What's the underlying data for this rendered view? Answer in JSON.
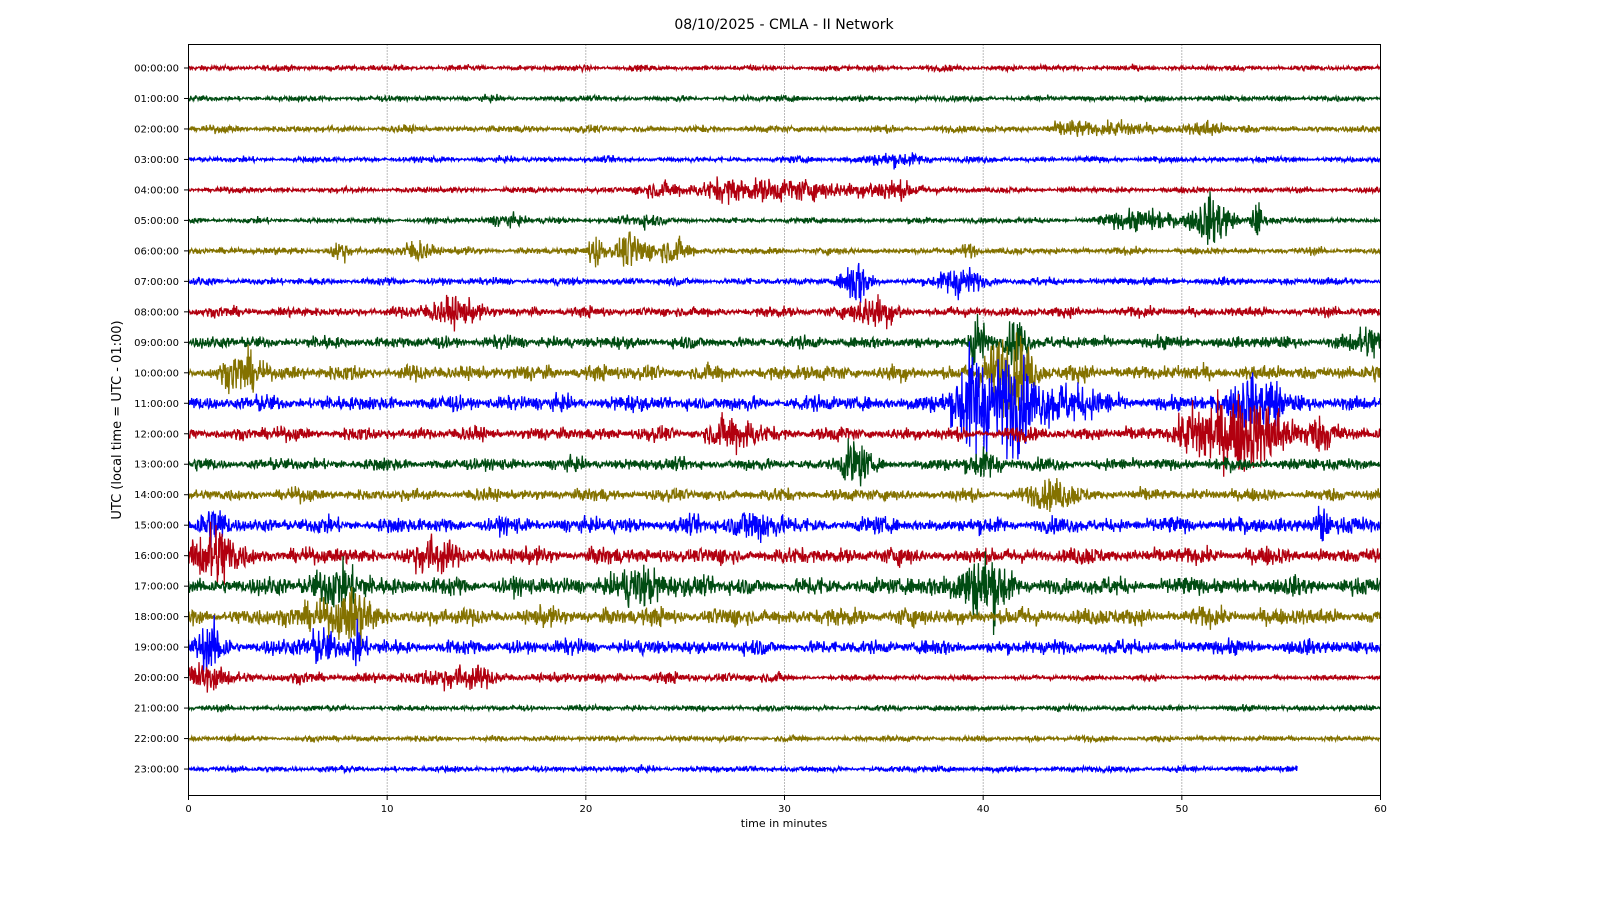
{
  "chart_data": {
    "type": "line",
    "subtype": "helicorder",
    "title": "08/10/2025 - CMLA - II Network",
    "xlabel": "time in minutes",
    "ylabel": "UTC (local time = UTC - 01:00)",
    "xlim": [
      0,
      60
    ],
    "xticks": [
      0,
      10,
      20,
      30,
      40,
      50,
      60
    ],
    "grid": "vertical dotted at x ticks",
    "colors": [
      "#B2000F",
      "#004C12",
      "#847200",
      "#0000FF"
    ],
    "rows": [
      {
        "label": "00:00:00",
        "noise": 0.1,
        "end": 60,
        "events": []
      },
      {
        "label": "01:00:00",
        "noise": 0.1,
        "end": 60,
        "events": []
      },
      {
        "label": "02:00:00",
        "noise": 0.12,
        "end": 60,
        "events": [
          [
            44.5,
            0.2,
            1.5
          ],
          [
            47,
            0.22,
            1.5
          ],
          [
            51.3,
            0.3,
            1
          ]
        ]
      },
      {
        "label": "03:00:00",
        "noise": 0.1,
        "end": 60,
        "events": [
          [
            35.5,
            0.18,
            2
          ]
        ]
      },
      {
        "label": "04:00:00",
        "noise": 0.1,
        "end": 60,
        "events": [
          [
            24,
            0.25,
            1.5
          ],
          [
            27,
            0.3,
            1.5
          ],
          [
            30,
            0.35,
            3
          ],
          [
            35,
            0.28,
            2.5
          ]
        ]
      },
      {
        "label": "05:00:00",
        "noise": 0.1,
        "end": 60,
        "events": [
          [
            16,
            0.2,
            1
          ],
          [
            23,
            0.2,
            1
          ],
          [
            48,
            0.35,
            2
          ],
          [
            51.5,
            0.8,
            1.2
          ],
          [
            53.8,
            0.6,
            0.4
          ]
        ]
      },
      {
        "label": "06:00:00",
        "noise": 0.12,
        "end": 60,
        "events": [
          [
            7.6,
            0.4,
            0.5
          ],
          [
            11.5,
            0.35,
            1
          ],
          [
            20.5,
            0.55,
            0.5
          ],
          [
            22.3,
            0.6,
            1
          ],
          [
            24.5,
            0.4,
            1
          ],
          [
            39.3,
            0.25,
            0.5
          ]
        ]
      },
      {
        "label": "07:00:00",
        "noise": 0.13,
        "end": 60,
        "events": [
          [
            33.6,
            0.75,
            0.8
          ],
          [
            38.8,
            0.5,
            1.2
          ]
        ]
      },
      {
        "label": "08:00:00",
        "noise": 0.18,
        "end": 60,
        "events": [
          [
            13.2,
            0.45,
            1.5
          ],
          [
            34.5,
            0.45,
            1.5
          ]
        ]
      },
      {
        "label": "09:00:00",
        "noise": 0.22,
        "end": 60,
        "events": [
          [
            39.7,
            1.2,
            0.4
          ],
          [
            41.7,
            0.9,
            0.6
          ],
          [
            59.5,
            0.5,
            1
          ]
        ]
      },
      {
        "label": "10:00:00",
        "noise": 0.28,
        "end": 60,
        "events": [
          [
            2.8,
            0.5,
            1.2
          ],
          [
            41.3,
            1.3,
            1.5
          ]
        ]
      },
      {
        "label": "11:00:00",
        "noise": 0.28,
        "end": 60,
        "events": [
          [
            39.5,
            1.9,
            1.2
          ],
          [
            41.5,
            1.5,
            1.2
          ],
          [
            44,
            0.6,
            2
          ],
          [
            53.3,
            0.9,
            1
          ],
          [
            54.5,
            0.7,
            0.6
          ]
        ]
      },
      {
        "label": "12:00:00",
        "noise": 0.24,
        "end": 60,
        "events": [
          [
            27.5,
            0.5,
            1.5
          ],
          [
            51,
            1,
            1.5
          ],
          [
            53,
            1.2,
            1.2
          ],
          [
            54.6,
            0.9,
            1
          ],
          [
            57,
            0.4,
            1.5
          ]
        ]
      },
      {
        "label": "13:00:00",
        "noise": 0.22,
        "end": 60,
        "events": [
          [
            33.5,
            0.7,
            0.8
          ],
          [
            40,
            0.4,
            1
          ]
        ]
      },
      {
        "label": "14:00:00",
        "noise": 0.22,
        "end": 60,
        "events": [
          [
            43.5,
            0.4,
            1.5
          ]
        ]
      },
      {
        "label": "15:00:00",
        "noise": 0.28,
        "end": 60,
        "events": [
          [
            1.2,
            0.5,
            0.8
          ],
          [
            28.5,
            0.45,
            1.5
          ],
          [
            57,
            0.7,
            0.4
          ]
        ]
      },
      {
        "label": "16:00:00",
        "noise": 0.3,
        "end": 60,
        "events": [
          [
            1.3,
            1.1,
            1.2
          ],
          [
            12.5,
            0.45,
            1.5
          ]
        ]
      },
      {
        "label": "17:00:00",
        "noise": 0.32,
        "end": 60,
        "events": [
          [
            7.5,
            0.5,
            2
          ],
          [
            23,
            0.45,
            2
          ],
          [
            39.5,
            0.75,
            1.5
          ],
          [
            40.5,
            0.55,
            1
          ]
        ]
      },
      {
        "label": "18:00:00",
        "noise": 0.32,
        "end": 60,
        "events": [
          [
            7.5,
            0.5,
            2
          ],
          [
            8.6,
            0.4,
            0.8
          ]
        ]
      },
      {
        "label": "19:00:00",
        "noise": 0.26,
        "end": 60,
        "events": [
          [
            1.2,
            0.6,
            1
          ],
          [
            6.6,
            0.55,
            1
          ],
          [
            8.5,
            0.6,
            0.5
          ]
        ]
      },
      {
        "label": "20:00:00",
        "noise": 0.18,
        "end": 60,
        "events": [
          [
            0.5,
            0.35,
            2
          ],
          [
            13.5,
            0.35,
            2
          ]
        ],
        "quiet_after": 30
      },
      {
        "label": "21:00:00",
        "noise": 0.1,
        "end": 60,
        "events": []
      },
      {
        "label": "22:00:00",
        "noise": 0.1,
        "end": 60,
        "events": []
      },
      {
        "label": "23:00:00",
        "noise": 0.11,
        "end": 55.8,
        "events": []
      }
    ]
  }
}
